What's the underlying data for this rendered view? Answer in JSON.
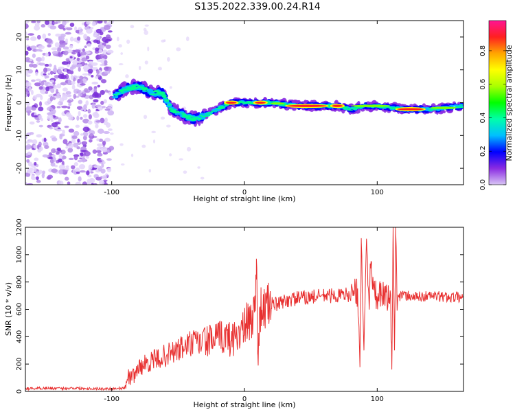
{
  "figure_title": "S135.2022.339.00.24.R14",
  "chart_data": [
    {
      "type": "heatmap",
      "xlabel": "Height of straight line (km)",
      "ylabel": "Frequency (Hz)",
      "xlim": [
        -165,
        165
      ],
      "ylim": [
        -25,
        25
      ],
      "xticks": [
        -100,
        0,
        100
      ],
      "yticks": [
        -20,
        -10,
        0,
        10,
        20
      ],
      "colorbar": {
        "label": "Normalized spectral amplitude",
        "range": [
          0,
          0.98
        ],
        "ticks": [
          "0.0",
          "0.2",
          "0.4",
          "0.6",
          "0.8"
        ],
        "colormap": [
          "#ffffff",
          "#d9c6f5",
          "#8a2be2",
          "#0000ff",
          "#00bfff",
          "#00ffaa",
          "#00ff00",
          "#aaff00",
          "#ffff00",
          "#ffa500",
          "#ff2020",
          "#ff1493"
        ]
      },
      "noise_region_x": [
        -165,
        -100
      ],
      "ridge": [
        {
          "x": -98,
          "y": 2
        },
        {
          "x": -90,
          "y": 4
        },
        {
          "x": -80,
          "y": 5
        },
        {
          "x": -70,
          "y": 3
        },
        {
          "x": -62,
          "y": 3
        },
        {
          "x": -55,
          "y": -2
        },
        {
          "x": -45,
          "y": -4
        },
        {
          "x": -38,
          "y": -5
        },
        {
          "x": -30,
          "y": -4
        },
        {
          "x": -20,
          "y": -2
        },
        {
          "x": -10,
          "y": 0
        },
        {
          "x": 0,
          "y": 0
        },
        {
          "x": 10,
          "y": 0
        },
        {
          "x": 20,
          "y": 0
        },
        {
          "x": 40,
          "y": -1
        },
        {
          "x": 60,
          "y": -1
        },
        {
          "x": 70,
          "y": -1
        },
        {
          "x": 80,
          "y": -2
        },
        {
          "x": 90,
          "y": -1
        },
        {
          "x": 100,
          "y": -1
        },
        {
          "x": 120,
          "y": -2
        },
        {
          "x": 140,
          "y": -2
        },
        {
          "x": 165,
          "y": -1
        }
      ]
    },
    {
      "type": "line",
      "xlabel": "Height of straight line (km)",
      "ylabel": "SNR (10 * v/v)",
      "xlim": [
        -165,
        165
      ],
      "ylim": [
        0,
        1200
      ],
      "xticks": [
        -100,
        0,
        100
      ],
      "yticks": [
        0,
        200,
        400,
        600,
        800,
        1000,
        1200
      ],
      "color": "#e83030",
      "series": [
        {
          "x": [
            -165,
            -150,
            -140,
            -130,
            -120,
            -110,
            -100,
            -95,
            -90,
            -88,
            -85,
            -80,
            -75,
            -70,
            -65,
            -60,
            -55,
            -50,
            -45,
            -40,
            -35,
            -30,
            -25,
            -20,
            -15,
            -10,
            -5,
            0,
            3,
            6,
            8,
            9,
            10,
            12,
            15,
            20,
            25,
            30,
            40,
            50,
            60,
            70,
            80,
            85,
            87,
            88,
            90,
            92,
            94,
            95,
            98,
            100,
            105,
            110,
            111,
            112,
            113,
            114,
            115,
            120,
            130,
            140,
            150,
            165
          ],
          "y": [
            20,
            25,
            20,
            25,
            22,
            20,
            20,
            22,
            25,
            120,
            90,
            170,
            200,
            220,
            240,
            260,
            280,
            300,
            330,
            350,
            350,
            370,
            370,
            390,
            400,
            380,
            420,
            460,
            500,
            550,
            600,
            970,
            300,
            600,
            600,
            650,
            630,
            660,
            680,
            690,
            700,
            700,
            710,
            720,
            200,
            1120,
            300,
            1100,
            650,
            900,
            700,
            700,
            690,
            690,
            160,
            1200,
            300,
            1150,
            700,
            700,
            690,
            700,
            690,
            690
          ]
        }
      ]
    }
  ]
}
